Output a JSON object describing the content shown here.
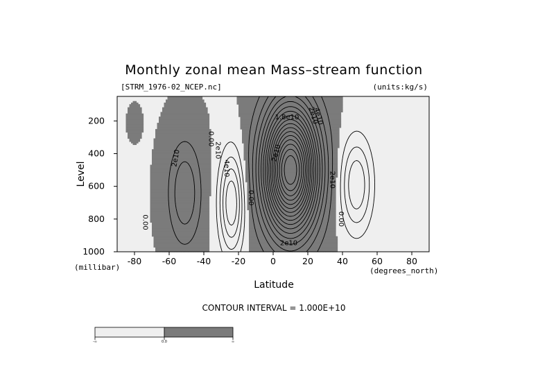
{
  "chart_data": {
    "type": "contour",
    "title": "Monthly zonal mean Mass–stream function",
    "file_label": "[STRM_1976-02_NCEP.nc]",
    "units_label": "(units:kg/s)",
    "xlabel": "Latitude",
    "ylabel": "Level",
    "x_units": "(degrees_north)",
    "y_units": "(millibar)",
    "xlim": [
      -90,
      90
    ],
    "ylim": [
      1000,
      50
    ],
    "y_inverted": true,
    "x_ticks": [
      -80,
      -60,
      -40,
      -20,
      0,
      20,
      40,
      60,
      80
    ],
    "x_tick_labels": [
      "-80",
      "-60",
      "-40",
      "-20",
      "0",
      "20",
      "40",
      "60",
      "80"
    ],
    "y_ticks": [
      200,
      400,
      600,
      800,
      1000
    ],
    "y_tick_labels": [
      "200",
      "400",
      "600",
      "800",
      "1000"
    ],
    "contour_interval_text": "CONTOUR INTERVAL = 1.000E+10",
    "contour_interval": 10000000000.0,
    "shading": {
      "negative": "#efefef",
      "positive": "#7b7b7b"
    },
    "colorbar": {
      "labels": [
        "-∞",
        "0.0",
        "∞"
      ]
    },
    "cells": [
      {
        "name": "southern-polar-cell",
        "center": [
          -80,
          210
        ],
        "half_width": [
          3,
          80
        ],
        "max": 3000000000.0
      },
      {
        "name": "southern-ferrel-cell",
        "center": [
          -51,
          640
        ],
        "half_width": [
          9,
          300
        ],
        "max": 30000000000.0
      },
      {
        "name": "hadley-cell-negative",
        "center": [
          -24,
          700
        ],
        "half_width": [
          7,
          300
        ],
        "max": -50000000000.0
      },
      {
        "name": "hadley-cell-main",
        "center": [
          10,
          500
        ],
        "half_width": [
          15,
          370
        ],
        "max": 180000000000.0
      },
      {
        "name": "northern-ferrel-cell",
        "center": [
          48,
          590
        ],
        "half_width": [
          9,
          280
        ],
        "max": -40000000000.0
      }
    ],
    "contour_labels": [
      "2e10",
      "0.00",
      "2e10",
      "4e10",
      "0.00",
      "0.00",
      "1.8e10",
      "2e10",
      "4e10",
      "2e10",
      "2e10",
      "2e10",
      "0.00"
    ]
  }
}
